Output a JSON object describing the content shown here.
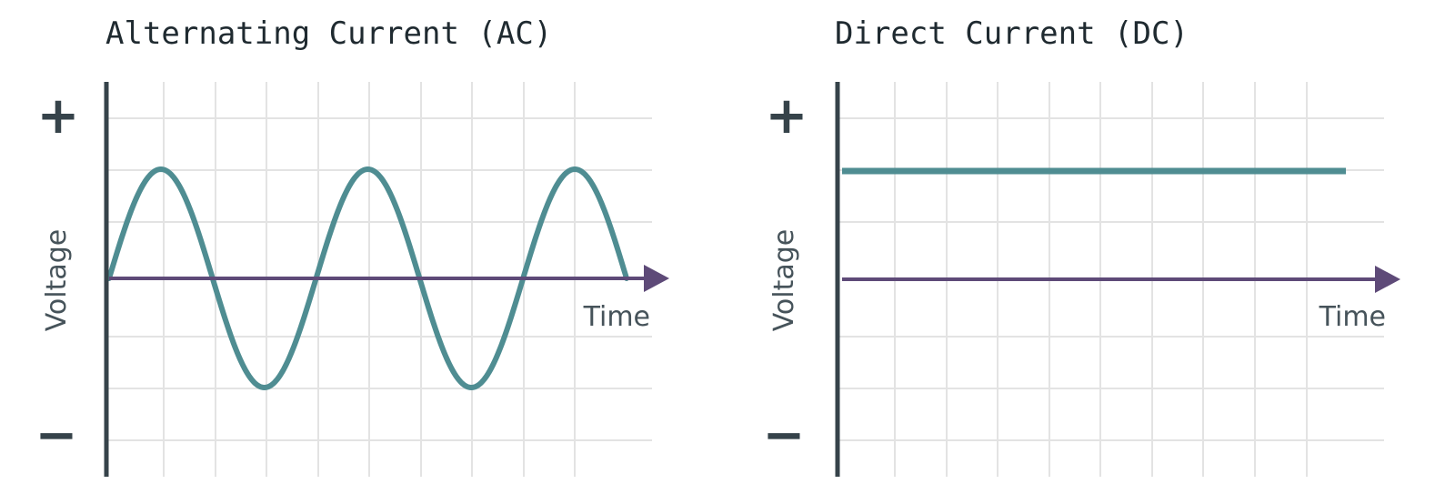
{
  "colors": {
    "grid": "#e3e3e3",
    "axis": "#36434a",
    "time_axis": "#5e4a78",
    "signal": "#4f8d92",
    "text": "#1f2a30"
  },
  "panels": [
    {
      "id": "ac",
      "title": "Alternating Current (AC)",
      "y_label": "Voltage",
      "x_label": "Time",
      "plus_sign": "+",
      "minus_sign": "−",
      "signal": {
        "type": "sine",
        "cycles": 2.5
      }
    },
    {
      "id": "dc",
      "title": "Direct Current (DC)",
      "y_label": "Voltage",
      "x_label": "Time",
      "plus_sign": "+",
      "minus_sign": "−",
      "signal": {
        "type": "constant",
        "level": 1
      }
    }
  ]
}
